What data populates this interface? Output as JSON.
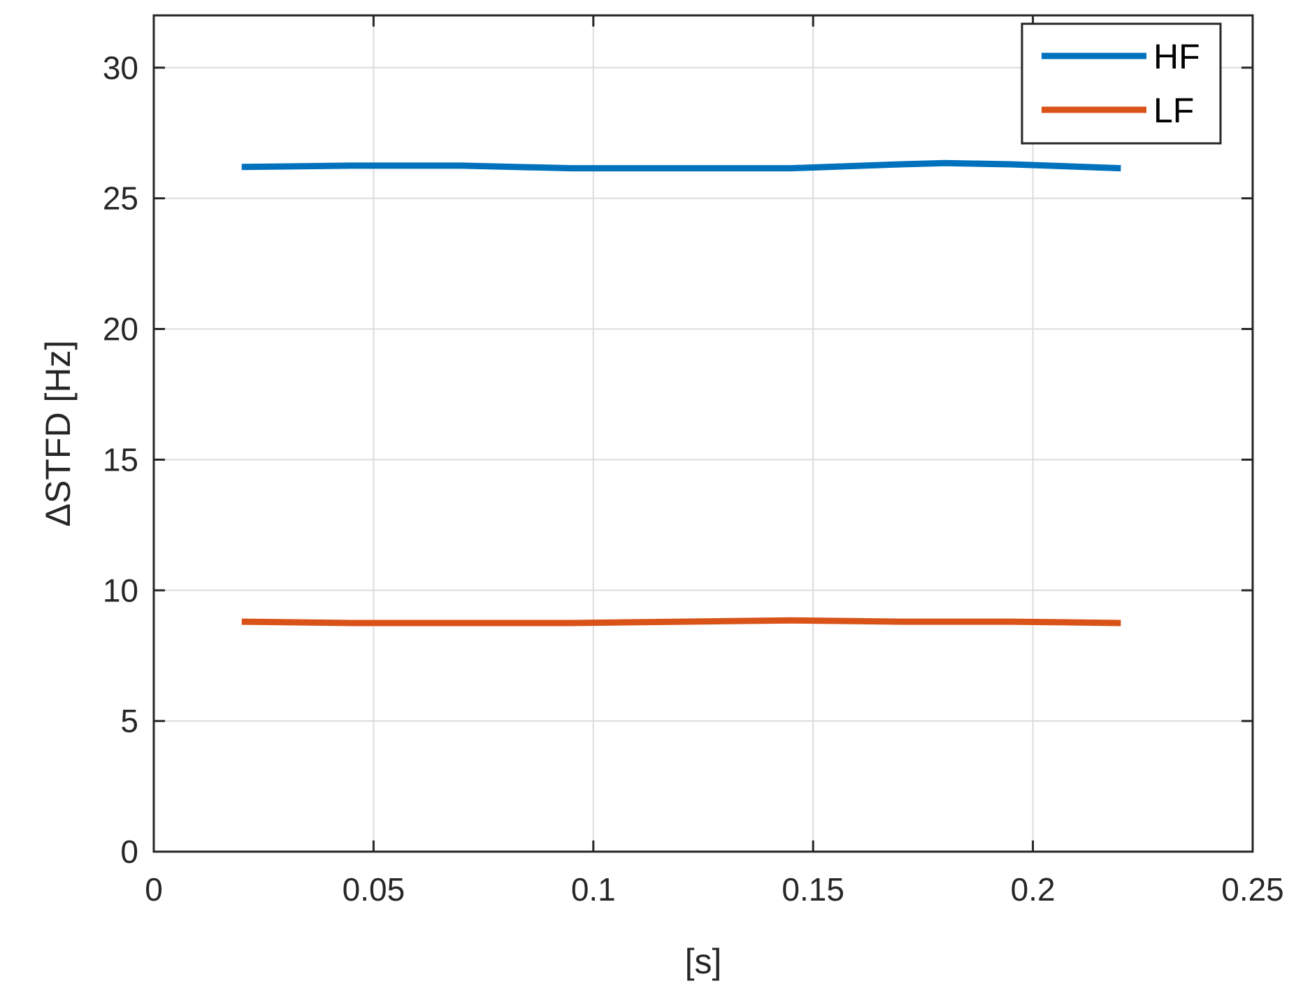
{
  "chart_data": {
    "type": "line",
    "title": "",
    "xlabel": "[s]",
    "ylabel": "ΔSTFD [Hz]",
    "xlim": [
      0,
      0.25
    ],
    "ylim": [
      0,
      32
    ],
    "xticks": [
      0,
      0.05,
      0.1,
      0.15,
      0.2,
      0.25
    ],
    "xtick_labels": [
      "0",
      "0.05",
      "0.1",
      "0.15",
      "0.2",
      "0.25"
    ],
    "yticks": [
      0,
      5,
      10,
      15,
      20,
      25,
      30
    ],
    "ytick_labels": [
      "0",
      "5",
      "10",
      "15",
      "20",
      "25",
      "30"
    ],
    "grid": true,
    "legend_position": "top-right",
    "series": [
      {
        "name": "HF",
        "color": "#0072BD",
        "x": [
          0.02,
          0.045,
          0.07,
          0.095,
          0.12,
          0.145,
          0.17,
          0.18,
          0.195,
          0.22
        ],
        "y": [
          26.2,
          26.25,
          26.25,
          26.15,
          26.15,
          26.15,
          26.3,
          26.35,
          26.3,
          26.15
        ]
      },
      {
        "name": "LF",
        "color": "#D95319",
        "x": [
          0.02,
          0.045,
          0.07,
          0.095,
          0.12,
          0.145,
          0.17,
          0.195,
          0.22
        ],
        "y": [
          8.8,
          8.75,
          8.75,
          8.75,
          8.8,
          8.85,
          8.8,
          8.8,
          8.75
        ]
      }
    ]
  }
}
